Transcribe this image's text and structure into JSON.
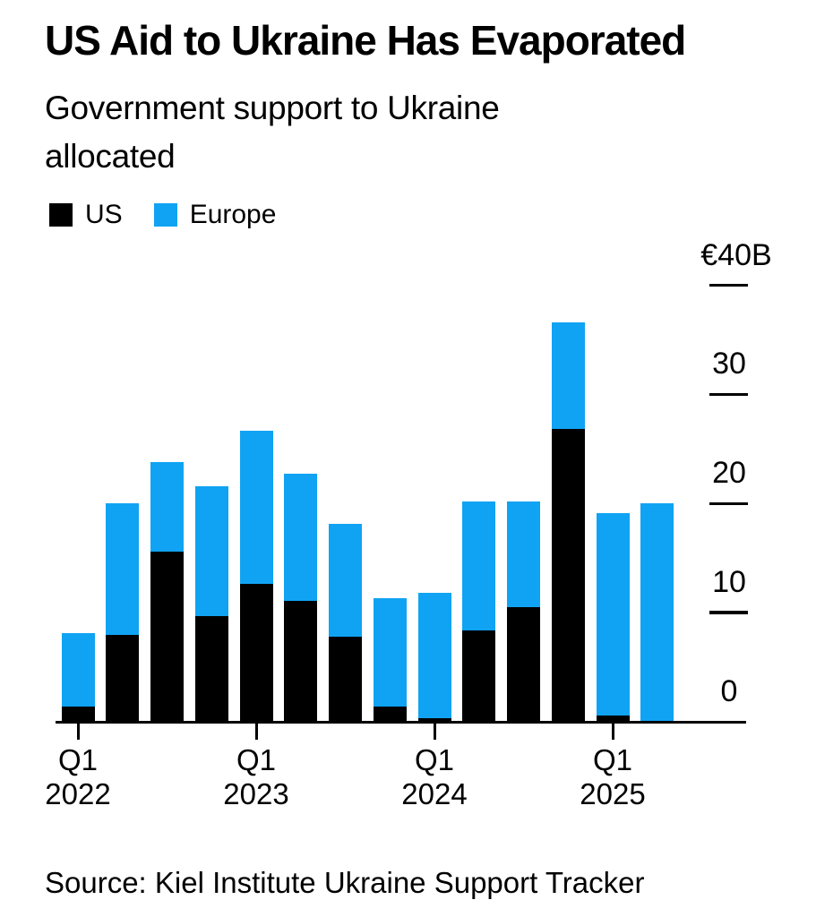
{
  "header": {
    "title": "US Aid to Ukraine Has Evaporated",
    "subtitle": "Government support to Ukraine allocated"
  },
  "legend": {
    "items": [
      {
        "label": "US",
        "color": "#000000"
      },
      {
        "label": "Europe",
        "color": "#10a3f3"
      }
    ]
  },
  "y_axis": {
    "ticks": [
      {
        "label": "€40B",
        "value": 40
      },
      {
        "label": "30",
        "value": 30
      },
      {
        "label": "20",
        "value": 20
      },
      {
        "label": "10",
        "value": 10
      },
      {
        "label": "0",
        "value": 0
      }
    ]
  },
  "x_axis": {
    "ticks": [
      {
        "line1": "Q1",
        "line2": "2022",
        "index": 0
      },
      {
        "line1": "Q1",
        "line2": "2023",
        "index": 4
      },
      {
        "line1": "Q1",
        "line2": "2024",
        "index": 8
      },
      {
        "line1": "Q1",
        "line2": "2025",
        "index": 12
      }
    ]
  },
  "source": "Source: Kiel Institute Ukraine Support Tracker",
  "chart_data": {
    "type": "bar",
    "stacked": true,
    "title": "US Aid to Ukraine Has Evaporated",
    "subtitle": "Government support to Ukraine allocated",
    "unit": "EUR billions (€B)",
    "categories": [
      "Q1 2022",
      "Q2 2022",
      "Q3 2022",
      "Q4 2022",
      "Q1 2023",
      "Q2 2023",
      "Q3 2023",
      "Q4 2023",
      "Q1 2024",
      "Q2 2024",
      "Q3 2024",
      "Q4 2024",
      "Q1 2025",
      "Q2 2025"
    ],
    "series": [
      {
        "name": "US",
        "color": "#000000",
        "values": [
          1.4,
          8.0,
          15.6,
          9.7,
          12.6,
          11.1,
          7.8,
          1.4,
          0.3,
          8.4,
          10.5,
          26.8,
          0.6,
          0.0
        ]
      },
      {
        "name": "Europe",
        "color": "#10a3f3",
        "values": [
          6.7,
          12.0,
          8.2,
          11.9,
          14.1,
          11.6,
          10.3,
          9.9,
          11.5,
          11.8,
          9.7,
          9.8,
          18.5,
          20.0
        ]
      }
    ],
    "ylim": [
      0,
      40
    ],
    "y_ticks": [
      0,
      10,
      20,
      30,
      40
    ],
    "x_tick_indices": [
      0,
      4,
      8,
      12
    ],
    "grid": false,
    "legend_position": "top-left",
    "source": "Source: Kiel Institute Ukraine Support Tracker"
  }
}
